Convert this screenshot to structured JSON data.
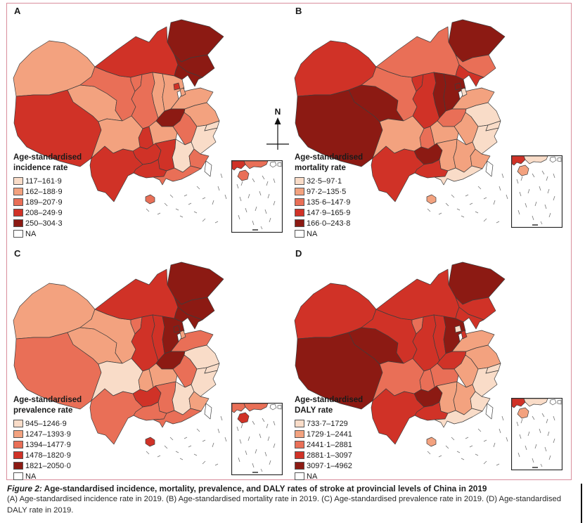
{
  "figure": {
    "north_label": "N",
    "caption_label": "Figure 2:",
    "caption_title": "Age-standardised incidence, mortality, prevalence, and DALY rates of stroke at provincial levels of China in 2019",
    "caption_detail": "(A) Age-standardised incidence rate in 2019. (B) Age-standardised mortality rate in 2019. (C) Age-standardised prevalence rate in 2019. (D) Age-standardised DALY rate in 2019."
  },
  "palette": {
    "class_colors": [
      "#f9dcc8",
      "#f3a27f",
      "#e96f57",
      "#d03227",
      "#8c1a13"
    ],
    "na_color": "#ffffff",
    "boundary_color": "#3d3d3d",
    "frame_color": "#d98e9c"
  },
  "panels": [
    {
      "label": "A",
      "legend_title": [
        "Age-standardised",
        "incidence rate"
      ],
      "legend": [
        "117–161·9",
        "162–188·9",
        "189–207·9",
        "208–249·9",
        "250–304·3",
        "NA"
      ],
      "classes": {
        "Xinjiang": 2,
        "Tibet": 4,
        "Qinghai": 2,
        "Gansu": 3,
        "Ningxia": 3,
        "InnerMongolia": 4,
        "Heilongjiang": 5,
        "Jilin": 5,
        "Liaoning": 5,
        "Beijing": 4,
        "Tianjin": 2,
        "Hebei": 2,
        "Shanxi": 2,
        "Shaanxi": 3,
        "Shandong": 2,
        "Henan": 5,
        "Jiangsu": 2,
        "Anhui": 3,
        "Shanghai": 1,
        "Zhejiang": 1,
        "Hubei": 2,
        "Chongqing": 4,
        "Sichuan": 2,
        "Guizhou": 4,
        "Hunan": 4,
        "Jiangxi": 1,
        "Fujian": 3,
        "Yunnan": 4,
        "Guangxi": 4,
        "Guangdong": 3,
        "Hainan": 3,
        "Taiwan": 0
      }
    },
    {
      "label": "B",
      "legend_title": [
        "Age-standardised",
        "mortality rate"
      ],
      "legend": [
        "32·5–97·1",
        "97·2–135·5",
        "135·6–147·9",
        "147·9–165·9",
        "166·0–243·8",
        "NA"
      ],
      "classes": {
        "Xinjiang": 4,
        "Tibet": 5,
        "Qinghai": 5,
        "Gansu": 3,
        "Ningxia": 4,
        "InnerMongolia": 3,
        "Heilongjiang": 5,
        "Jilin": 3,
        "Liaoning": 4,
        "Beijing": 5,
        "Tianjin": 1,
        "Hebei": 5,
        "Shanxi": 5,
        "Shaanxi": 4,
        "Shandong": 2,
        "Henan": 3,
        "Jiangsu": 1,
        "Anhui": 2,
        "Shanghai": 1,
        "Zhejiang": 1,
        "Hubei": 2,
        "Chongqing": 3,
        "Sichuan": 2,
        "Guizhou": 5,
        "Hunan": 2,
        "Jiangxi": 2,
        "Fujian": 2,
        "Yunnan": 4,
        "Guangxi": 4,
        "Guangdong": 1,
        "Hainan": 2,
        "Taiwan": 0
      }
    },
    {
      "label": "C",
      "legend_title": [
        "Age-standardised",
        "prevalence rate"
      ],
      "legend": [
        "945–1246·9",
        "1247–1393·9",
        "1394–1477·9",
        "1478–1820·9",
        "1821–2050·0",
        "NA"
      ],
      "classes": {
        "Xinjiang": 2,
        "Tibet": 3,
        "Qinghai": 2,
        "Gansu": 2,
        "Ningxia": 3,
        "InnerMongolia": 4,
        "Heilongjiang": 5,
        "Jilin": 5,
        "Liaoning": 5,
        "Beijing": 5,
        "Tianjin": 2,
        "Hebei": 5,
        "Shanxi": 4,
        "Shaanxi": 4,
        "Shandong": 3,
        "Henan": 5,
        "Jiangsu": 1,
        "Anhui": 3,
        "Shanghai": 1,
        "Zhejiang": 1,
        "Hubei": 2,
        "Chongqing": 2,
        "Sichuan": 1,
        "Guizhou": 4,
        "Hunan": 3,
        "Jiangxi": 1,
        "Fujian": 2,
        "Yunnan": 3,
        "Guangxi": 3,
        "Guangdong": 3,
        "Hainan": 4,
        "Taiwan": 0
      }
    },
    {
      "label": "D",
      "legend_title": [
        "Age-standardised",
        "DALY rate"
      ],
      "legend": [
        "733·7–1729",
        "1729·1–2441",
        "2441·1–2881",
        "2881·1–3097",
        "3097·1–4962",
        "NA"
      ],
      "classes": {
        "Xinjiang": 4,
        "Tibet": 5,
        "Qinghai": 5,
        "Gansu": 4,
        "Ningxia": 3,
        "InnerMongolia": 4,
        "Heilongjiang": 5,
        "Jilin": 4,
        "Liaoning": 4,
        "Beijing": 1,
        "Tianjin": 4,
        "Hebei": 5,
        "Shanxi": 4,
        "Shaanxi": 4,
        "Shandong": 2,
        "Henan": 4,
        "Jiangsu": 2,
        "Anhui": 2,
        "Shanghai": 1,
        "Zhejiang": 1,
        "Hubei": 3,
        "Chongqing": 3,
        "Sichuan": 3,
        "Guizhou": 5,
        "Hunan": 2,
        "Jiangxi": 2,
        "Fujian": 1,
        "Yunnan": 4,
        "Guangxi": 4,
        "Guangdong": 1,
        "Hainan": 2,
        "Taiwan": 0
      }
    }
  ]
}
